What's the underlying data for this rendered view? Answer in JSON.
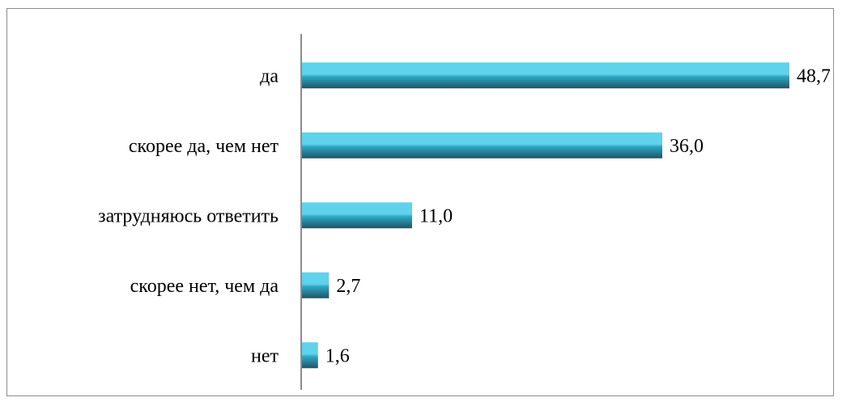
{
  "chart_data": {
    "type": "bar",
    "orientation": "horizontal",
    "categories": [
      "да",
      "скорее да, чем нет",
      "затрудняюсь ответить",
      "скорее нет, чем да",
      "нет"
    ],
    "values": [
      48.7,
      36.0,
      11.0,
      2.7,
      1.6
    ],
    "value_labels": [
      "48,7",
      "36,0",
      "11,0",
      "2,7",
      "1,6"
    ],
    "title": "",
    "xlabel": "",
    "ylabel": "",
    "xlim": [
      0,
      48.7
    ],
    "grid": false,
    "legend": "none"
  },
  "colors": {
    "bar_light": "#5fd2ec",
    "bar_mid": "#2ea7c4",
    "bar_dark": "#1d5566",
    "axis": "#8c8c8c",
    "frame": "#8c8c8c",
    "text": "#000000"
  }
}
